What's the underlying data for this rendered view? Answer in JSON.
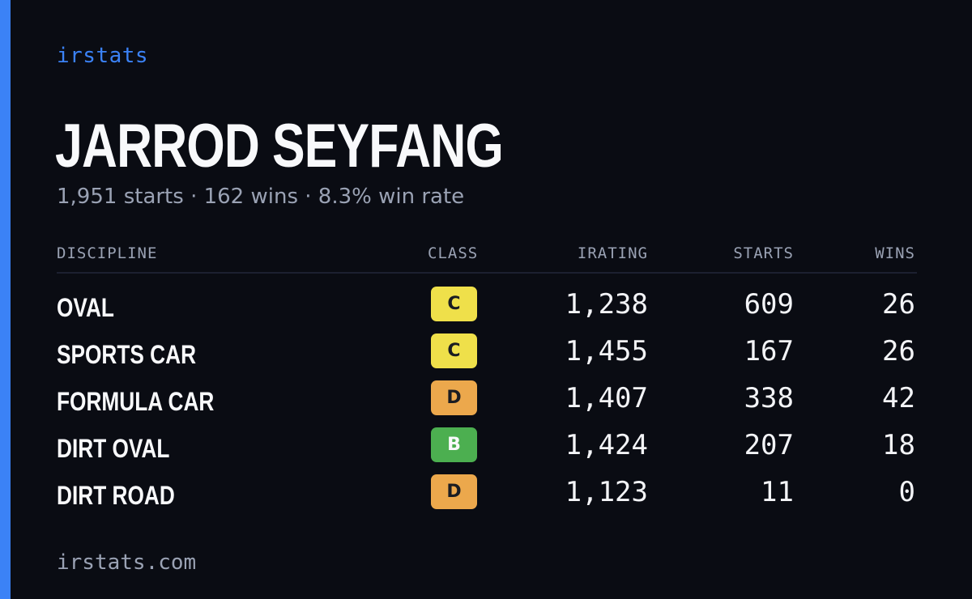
{
  "brand": "irstats",
  "driver": {
    "name": "JARROD SEYFANG",
    "summary": "1,951 starts · 162 wins · 8.3% win rate"
  },
  "table": {
    "headers": {
      "discipline": "DISCIPLINE",
      "class": "CLASS",
      "irating": "IRATING",
      "starts": "STARTS",
      "wins": "WINS"
    },
    "rows": [
      {
        "discipline": "OVAL",
        "class": "C",
        "class_color": "#efe04a",
        "irating": "1,238",
        "starts": "609",
        "wins": "26"
      },
      {
        "discipline": "SPORTS CAR",
        "class": "C",
        "class_color": "#efe04a",
        "irating": "1,455",
        "starts": "167",
        "wins": "26"
      },
      {
        "discipline": "FORMULA CAR",
        "class": "D",
        "class_color": "#eca84c",
        "irating": "1,407",
        "starts": "338",
        "wins": "42"
      },
      {
        "discipline": "DIRT OVAL",
        "class": "B",
        "class_color": "#4caf50",
        "irating": "1,424",
        "starts": "207",
        "wins": "18"
      },
      {
        "discipline": "DIRT ROAD",
        "class": "D",
        "class_color": "#eca84c",
        "irating": "1,123",
        "starts": "11",
        "wins": "0"
      }
    ]
  },
  "footer": "irstats.com",
  "colors": {
    "accent": "#3b82f6",
    "background": "#0a0c13",
    "muted_text": "#9aa2b4"
  }
}
